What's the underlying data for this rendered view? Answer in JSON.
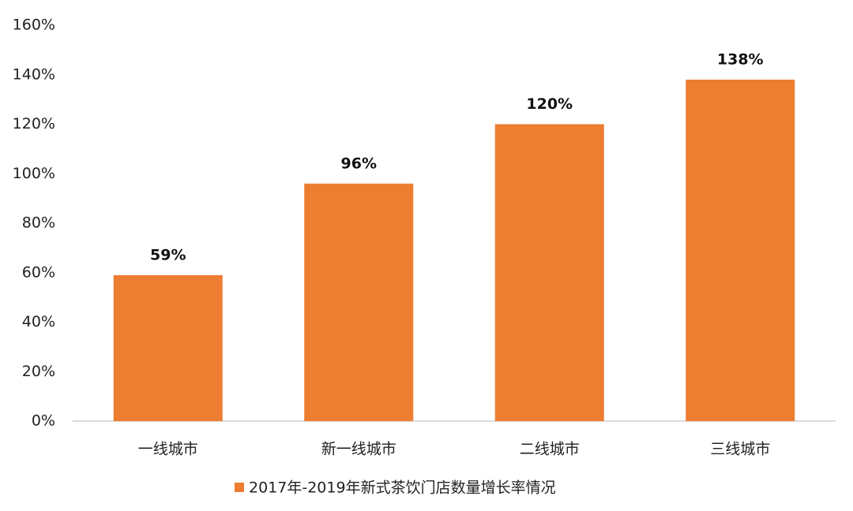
{
  "chart_data": {
    "type": "bar",
    "categories": [
      "一线城市",
      "新一线城市",
      "二线城市",
      "三线城市"
    ],
    "series": [
      {
        "name": "2017年-2019年新式茶饮门店数量增长率情况",
        "color": "#ed7d31",
        "values": [
          59,
          96,
          120,
          138
        ],
        "value_labels": [
          "59%",
          "96%",
          "120%",
          "138%"
        ]
      }
    ],
    "ylim": [
      0,
      160
    ],
    "yticks": [
      {
        "value": 0,
        "label": "0%"
      },
      {
        "value": 20,
        "label": "20%"
      },
      {
        "value": 40,
        "label": "40%"
      },
      {
        "value": 60,
        "label": "60%"
      },
      {
        "value": 80,
        "label": "80%"
      },
      {
        "value": 100,
        "label": "100%"
      },
      {
        "value": 120,
        "label": "120%"
      },
      {
        "value": 140,
        "label": "140%"
      },
      {
        "value": 160,
        "label": "160%"
      }
    ],
    "grid": false,
    "legend": "bottom"
  }
}
